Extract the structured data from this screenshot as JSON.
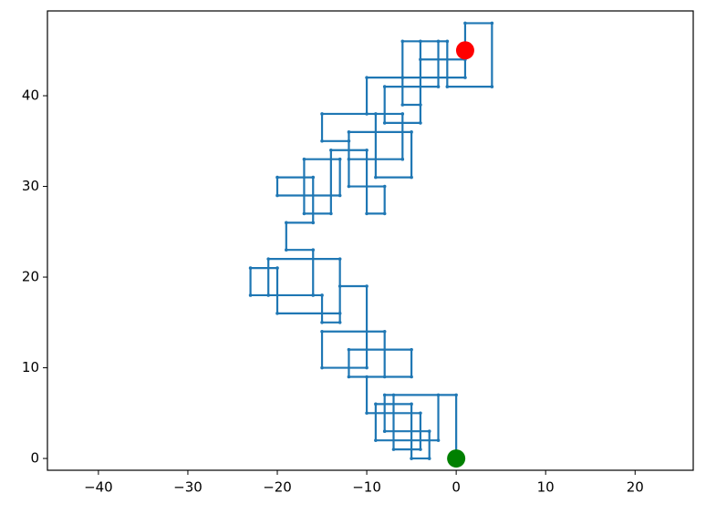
{
  "chart_data": {
    "type": "line",
    "xlim": [
      -45.7,
      26.5
    ],
    "ylim": [
      -1.3,
      49.35
    ],
    "xticks": [
      {
        "value": -40,
        "label": "−40"
      },
      {
        "value": -30,
        "label": "−30"
      },
      {
        "value": -20,
        "label": "−20"
      },
      {
        "value": -10,
        "label": "−10"
      },
      0,
      10,
      20
    ],
    "yticks": [
      0,
      10,
      20,
      30,
      40
    ],
    "grid": false,
    "series": [
      {
        "style": "line",
        "color": "#1f77b4",
        "x": [
          0,
          0,
          -8,
          -8,
          -3,
          -3,
          -5,
          -5,
          -9,
          -9,
          -2,
          -2,
          -7,
          -7,
          -4,
          -4,
          -10,
          -10,
          -5,
          -5,
          -12,
          -12,
          -8,
          -8,
          -15,
          -15,
          -10,
          -10,
          -13,
          -13,
          -15,
          -15,
          -21,
          -21,
          -13,
          -13,
          -20,
          -20,
          -23,
          -23,
          -16,
          -16,
          -19,
          -19,
          -16,
          -16,
          -20,
          -20,
          -13,
          -13,
          -17,
          -17,
          -14,
          -14,
          -10,
          -10,
          -8,
          -8,
          -12,
          -12,
          -15,
          -15,
          -9,
          -9,
          -5,
          -5,
          -12,
          -12,
          -6,
          -6,
          -10,
          -10,
          -6,
          -6,
          -4,
          -4,
          -2,
          -2,
          -8,
          -8,
          -4,
          -4,
          1,
          1,
          -6,
          -6,
          -1,
          -1,
          4,
          4,
          1,
          1
        ],
        "values": [
          0,
          7,
          7,
          3,
          3,
          0,
          0,
          6,
          6,
          2,
          2,
          7,
          7,
          1,
          1,
          5,
          5,
          9,
          9,
          12,
          12,
          9,
          9,
          14,
          14,
          10,
          10,
          19,
          19,
          15,
          15,
          18,
          18,
          22,
          22,
          16,
          16,
          21,
          21,
          18,
          18,
          23,
          23,
          26,
          26,
          31,
          31,
          29,
          29,
          33,
          33,
          27,
          27,
          34,
          34,
          27,
          27,
          30,
          30,
          35,
          35,
          38,
          38,
          31,
          31,
          36,
          36,
          33,
          33,
          38,
          38,
          42,
          42,
          39,
          39,
          46,
          46,
          41,
          41,
          37,
          37,
          44,
          44,
          42,
          42,
          46,
          46,
          41,
          41,
          48,
          48,
          45
        ]
      },
      {
        "style": "marker",
        "color": "green",
        "x": [
          0
        ],
        "values": [
          0
        ]
      },
      {
        "style": "marker",
        "color": "red",
        "x": [
          1
        ],
        "values": [
          45
        ]
      }
    ]
  }
}
